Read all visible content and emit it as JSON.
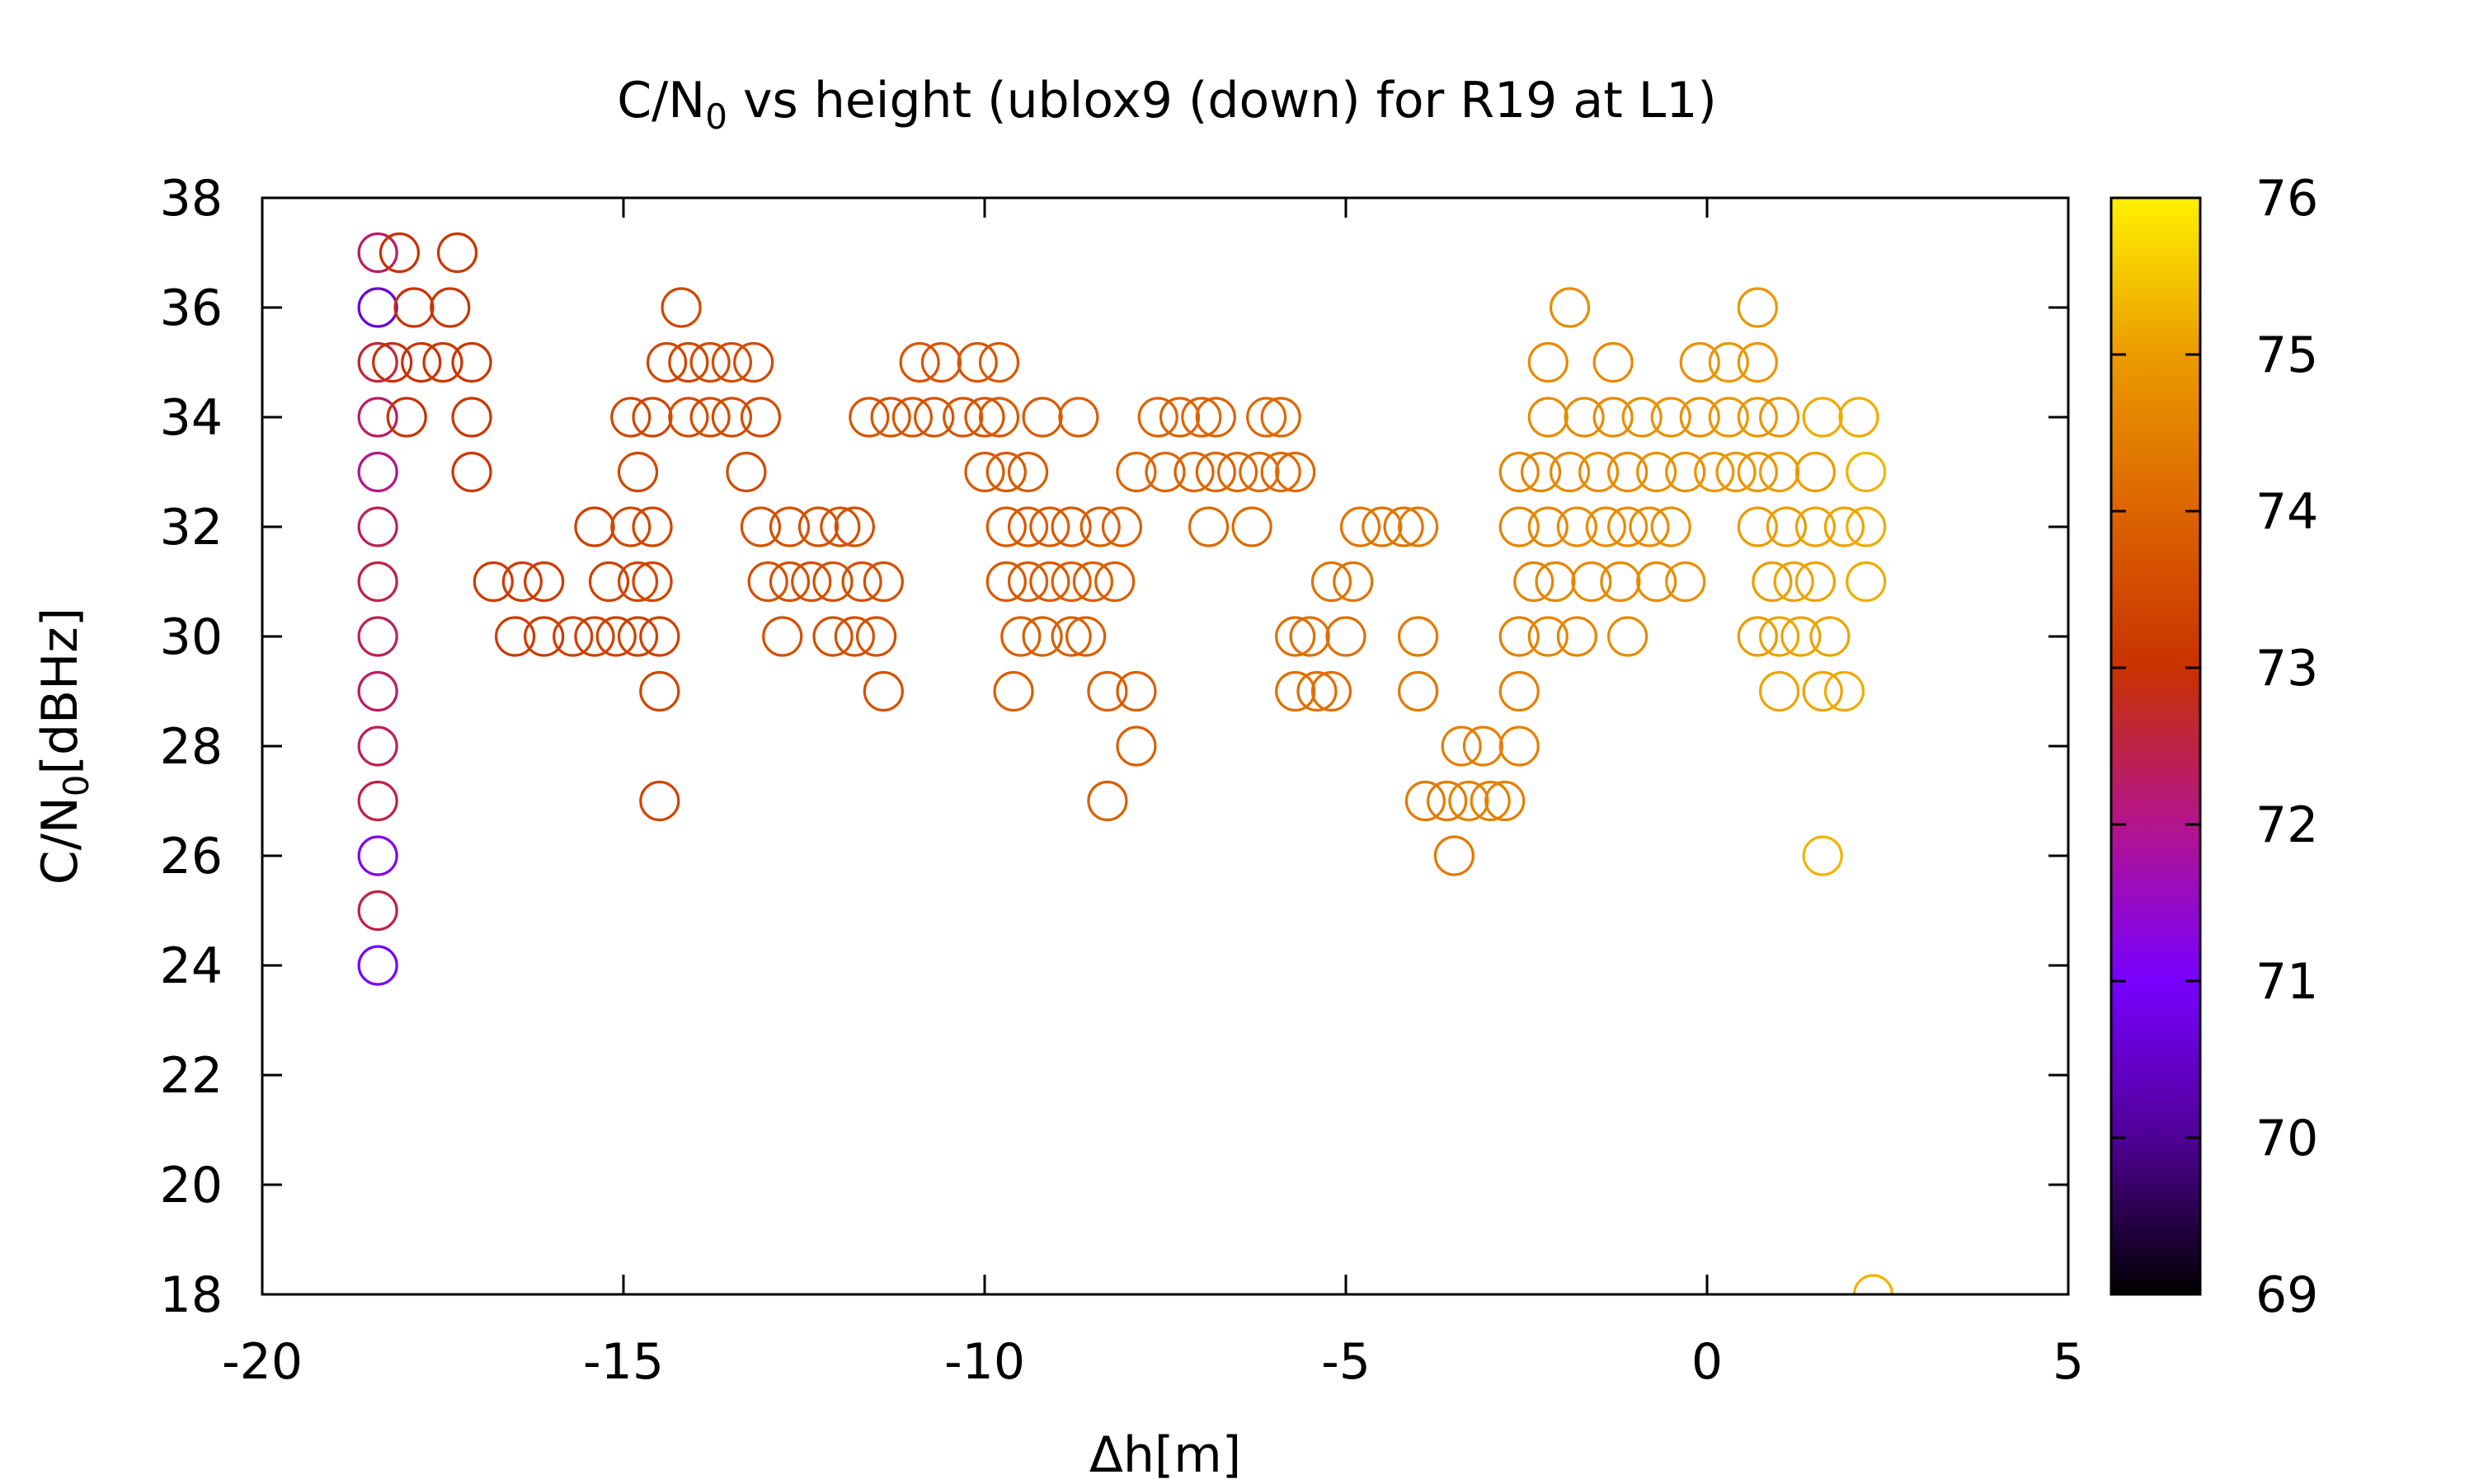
{
  "chart_data": {
    "type": "scatter",
    "title": {
      "main": "C/N",
      "sub": "0",
      "rest": " vs height (ublox9 (down) for R19 at L1)"
    },
    "xlabel": "Δh[m]",
    "ylabel": {
      "main": "C/N",
      "sub": "0",
      "rest": "[dBHz]"
    },
    "xlim": [
      -20,
      5
    ],
    "ylim": [
      18,
      38
    ],
    "xticks": [
      "-20",
      "-15",
      "-10",
      "-5",
      "0",
      "5"
    ],
    "yticks": [
      "18",
      "20",
      "22",
      "24",
      "26",
      "28",
      "30",
      "32",
      "34",
      "36",
      "38"
    ],
    "grid": false,
    "marker": "open circle",
    "colorbar": {
      "range": [
        69,
        76
      ],
      "ticks": [
        "69",
        "70",
        "71",
        "72",
        "73",
        "74",
        "75",
        "76"
      ],
      "palette": [
        "#000000",
        "#500096",
        "#7800ff",
        "#b4148c",
        "#c83200",
        "#dc6400",
        "#eb9b00",
        "#fff000"
      ]
    },
    "points": [
      [
        -18.4,
        37,
        72.3
      ],
      [
        -18.4,
        36,
        70.6
      ],
      [
        -18.4,
        35,
        72.6
      ],
      [
        -18.4,
        34,
        72.3
      ],
      [
        -18.4,
        33,
        72.0
      ],
      [
        -18.4,
        32,
        72.4
      ],
      [
        -18.4,
        31,
        72.5
      ],
      [
        -18.4,
        30,
        72.4
      ],
      [
        -18.4,
        29,
        72.3
      ],
      [
        -18.4,
        28,
        72.4
      ],
      [
        -18.4,
        27,
        72.5
      ],
      [
        -18.4,
        26,
        71.2
      ],
      [
        -18.4,
        25,
        72.5
      ],
      [
        -18.4,
        24,
        71.0
      ],
      [
        -18.1,
        37,
        73.0
      ],
      [
        -17.9,
        36,
        73.0
      ],
      [
        -18.2,
        35,
        72.9
      ],
      [
        -17.8,
        35,
        73.0
      ],
      [
        -17.5,
        35,
        73.1
      ],
      [
        -18.0,
        34,
        73.0
      ],
      [
        -17.3,
        37,
        73.1
      ],
      [
        -17.4,
        36,
        73.1
      ],
      [
        -17.1,
        35,
        73.1
      ],
      [
        -17.1,
        34,
        73.1
      ],
      [
        -17.1,
        33,
        73.1
      ],
      [
        -16.8,
        31,
        73.2
      ],
      [
        -16.4,
        31,
        73.2
      ],
      [
        -16.1,
        31,
        73.2
      ],
      [
        -16.5,
        30,
        73.2
      ],
      [
        -16.1,
        30,
        73.2
      ],
      [
        -15.7,
        30,
        73.3
      ],
      [
        -15.4,
        30,
        73.3
      ],
      [
        -15.1,
        30,
        73.3
      ],
      [
        -14.8,
        30,
        73.3
      ],
      [
        -14.5,
        30,
        73.3
      ],
      [
        -15.4,
        32,
        73.3
      ],
      [
        -15.2,
        31,
        73.3
      ],
      [
        -14.8,
        31,
        73.4
      ],
      [
        -14.6,
        31,
        73.4
      ],
      [
        -14.9,
        32,
        73.4
      ],
      [
        -14.6,
        32,
        73.4
      ],
      [
        -14.8,
        33,
        73.4
      ],
      [
        -14.9,
        34,
        73.4
      ],
      [
        -14.6,
        34,
        73.4
      ],
      [
        -14.5,
        29,
        73.4
      ],
      [
        -14.5,
        27,
        73.4
      ],
      [
        -14.2,
        36,
        73.4
      ],
      [
        -14.4,
        35,
        73.4
      ],
      [
        -14.1,
        35,
        73.4
      ],
      [
        -13.8,
        35,
        73.5
      ],
      [
        -13.5,
        35,
        73.5
      ],
      [
        -13.2,
        35,
        73.5
      ],
      [
        -14.1,
        34,
        73.5
      ],
      [
        -13.8,
        34,
        73.5
      ],
      [
        -13.5,
        34,
        73.5
      ],
      [
        -13.1,
        34,
        73.5
      ],
      [
        -13.3,
        33,
        73.5
      ],
      [
        -13.1,
        32,
        73.6
      ],
      [
        -12.7,
        32,
        73.6
      ],
      [
        -12.3,
        32,
        73.6
      ],
      [
        -12.0,
        32,
        73.6
      ],
      [
        -11.8,
        32,
        73.6
      ],
      [
        -13.0,
        31,
        73.6
      ],
      [
        -12.7,
        31,
        73.6
      ],
      [
        -12.4,
        31,
        73.6
      ],
      [
        -12.1,
        31,
        73.6
      ],
      [
        -11.7,
        31,
        73.6
      ],
      [
        -11.4,
        31,
        73.6
      ],
      [
        -12.8,
        30,
        73.6
      ],
      [
        -12.1,
        30,
        73.6
      ],
      [
        -11.8,
        30,
        73.6
      ],
      [
        -11.5,
        30,
        73.6
      ],
      [
        -11.4,
        29,
        73.6
      ],
      [
        -11.6,
        34,
        73.7
      ],
      [
        -11.3,
        34,
        73.7
      ],
      [
        -11.0,
        34,
        73.7
      ],
      [
        -10.7,
        34,
        73.7
      ],
      [
        -10.3,
        34,
        73.7
      ],
      [
        -10.0,
        34,
        73.7
      ],
      [
        -9.8,
        34,
        73.8
      ],
      [
        -9.2,
        34,
        73.8
      ],
      [
        -10.9,
        35,
        73.7
      ],
      [
        -10.6,
        35,
        73.7
      ],
      [
        -10.1,
        35,
        73.7
      ],
      [
        -9.8,
        35,
        73.8
      ],
      [
        -10.0,
        33,
        73.8
      ],
      [
        -9.7,
        33,
        73.8
      ],
      [
        -9.4,
        33,
        73.8
      ],
      [
        -9.7,
        32,
        73.8
      ],
      [
        -9.4,
        32,
        73.8
      ],
      [
        -9.1,
        32,
        73.8
      ],
      [
        -8.8,
        32,
        73.8
      ],
      [
        -8.4,
        32,
        73.9
      ],
      [
        -8.1,
        32,
        73.9
      ],
      [
        -9.7,
        31,
        73.8
      ],
      [
        -9.4,
        31,
        73.8
      ],
      [
        -9.1,
        31,
        73.8
      ],
      [
        -8.8,
        31,
        73.9
      ],
      [
        -8.5,
        31,
        73.9
      ],
      [
        -8.2,
        31,
        73.9
      ],
      [
        -9.5,
        30,
        73.9
      ],
      [
        -9.2,
        30,
        73.9
      ],
      [
        -8.8,
        30,
        73.9
      ],
      [
        -8.6,
        30,
        73.9
      ],
      [
        -9.6,
        29,
        73.9
      ],
      [
        -8.3,
        29,
        73.9
      ],
      [
        -7.9,
        29,
        73.9
      ],
      [
        -7.9,
        28,
        73.9
      ],
      [
        -8.3,
        27,
        73.9
      ],
      [
        -8.7,
        34,
        73.9
      ],
      [
        -7.6,
        34,
        74.0
      ],
      [
        -7.3,
        34,
        74.0
      ],
      [
        -7.0,
        34,
        74.0
      ],
      [
        -6.8,
        34,
        74.0
      ],
      [
        -6.1,
        34,
        74.1
      ],
      [
        -5.9,
        34,
        74.1
      ],
      [
        -7.9,
        33,
        74.0
      ],
      [
        -7.5,
        33,
        74.0
      ],
      [
        -7.1,
        33,
        74.0
      ],
      [
        -6.8,
        33,
        74.0
      ],
      [
        -6.5,
        33,
        74.1
      ],
      [
        -6.2,
        33,
        74.1
      ],
      [
        -5.9,
        33,
        74.1
      ],
      [
        -5.7,
        33,
        74.1
      ],
      [
        -6.9,
        32,
        74.1
      ],
      [
        -6.3,
        32,
        74.1
      ],
      [
        -5.7,
        30,
        74.2
      ],
      [
        -5.5,
        30,
        74.2
      ],
      [
        -5.7,
        29,
        74.2
      ],
      [
        -5.4,
        29,
        74.2
      ],
      [
        -5.2,
        29,
        74.2
      ],
      [
        -5.0,
        30,
        74.2
      ],
      [
        -5.2,
        31,
        74.3
      ],
      [
        -4.9,
        31,
        74.3
      ],
      [
        -4.8,
        32,
        74.3
      ],
      [
        -4.5,
        32,
        74.3
      ],
      [
        -4.2,
        32,
        74.3
      ],
      [
        -4.0,
        32,
        74.4
      ],
      [
        -4.0,
        30,
        74.4
      ],
      [
        -4.0,
        29,
        74.4
      ],
      [
        -3.9,
        27,
        74.4
      ],
      [
        -3.6,
        27,
        74.4
      ],
      [
        -3.3,
        27,
        74.5
      ],
      [
        -3.0,
        27,
        74.5
      ],
      [
        -2.8,
        27,
        74.5
      ],
      [
        -3.5,
        26,
        74.4
      ],
      [
        -3.4,
        28,
        74.5
      ],
      [
        -3.1,
        28,
        74.5
      ],
      [
        -2.6,
        28,
        74.5
      ],
      [
        -2.6,
        29,
        74.5
      ],
      [
        -2.6,
        30,
        74.5
      ],
      [
        -2.2,
        30,
        74.6
      ],
      [
        -1.8,
        30,
        74.6
      ],
      [
        -1.1,
        30,
        74.7
      ],
      [
        -2.4,
        31,
        74.6
      ],
      [
        -2.1,
        31,
        74.6
      ],
      [
        -1.6,
        31,
        74.7
      ],
      [
        -1.2,
        31,
        74.7
      ],
      [
        -0.7,
        31,
        74.7
      ],
      [
        -0.3,
        31,
        74.8
      ],
      [
        -2.6,
        32,
        74.6
      ],
      [
        -2.2,
        32,
        74.6
      ],
      [
        -1.8,
        32,
        74.7
      ],
      [
        -1.4,
        32,
        74.7
      ],
      [
        -1.1,
        32,
        74.7
      ],
      [
        -0.8,
        32,
        74.7
      ],
      [
        -0.5,
        32,
        74.8
      ],
      [
        -2.6,
        33,
        74.6
      ],
      [
        -2.3,
        33,
        74.6
      ],
      [
        -1.9,
        33,
        74.7
      ],
      [
        -1.5,
        33,
        74.7
      ],
      [
        -1.1,
        33,
        74.7
      ],
      [
        -0.7,
        33,
        74.8
      ],
      [
        -0.3,
        33,
        74.8
      ],
      [
        -2.2,
        34,
        74.7
      ],
      [
        -1.7,
        34,
        74.7
      ],
      [
        -1.3,
        34,
        74.7
      ],
      [
        -0.9,
        34,
        74.8
      ],
      [
        -0.5,
        34,
        74.8
      ],
      [
        -0.1,
        34,
        74.8
      ],
      [
        0.3,
        34,
        74.9
      ],
      [
        0.7,
        34,
        74.9
      ],
      [
        1.0,
        34,
        74.9
      ],
      [
        -2.2,
        35,
        74.7
      ],
      [
        -1.3,
        35,
        74.7
      ],
      [
        -1.9,
        36,
        74.7
      ],
      [
        -0.1,
        35,
        74.8
      ],
      [
        0.3,
        35,
        74.9
      ],
      [
        0.7,
        35,
        74.9
      ],
      [
        0.7,
        36,
        74.9
      ],
      [
        0.1,
        33,
        74.9
      ],
      [
        0.4,
        33,
        74.9
      ],
      [
        0.7,
        33,
        74.9
      ],
      [
        1.0,
        33,
        75.0
      ],
      [
        1.5,
        33,
        75.0
      ],
      [
        0.7,
        32,
        75.0
      ],
      [
        1.1,
        32,
        75.0
      ],
      [
        1.5,
        32,
        75.1
      ],
      [
        1.9,
        32,
        75.1
      ],
      [
        2.2,
        32,
        75.2
      ],
      [
        0.9,
        31,
        75.0
      ],
      [
        1.2,
        31,
        75.1
      ],
      [
        1.5,
        31,
        75.1
      ],
      [
        2.2,
        31,
        75.2
      ],
      [
        0.7,
        30,
        75.0
      ],
      [
        1.0,
        30,
        75.1
      ],
      [
        1.3,
        30,
        75.1
      ],
      [
        1.7,
        30,
        75.1
      ],
      [
        1.0,
        29,
        75.1
      ],
      [
        1.6,
        29,
        75.1
      ],
      [
        1.9,
        29,
        75.2
      ],
      [
        1.6,
        34,
        75.2
      ],
      [
        2.1,
        34,
        75.2
      ],
      [
        2.2,
        33,
        75.3
      ],
      [
        1.6,
        26,
        75.3
      ],
      [
        2.3,
        18,
        75.3
      ]
    ]
  }
}
